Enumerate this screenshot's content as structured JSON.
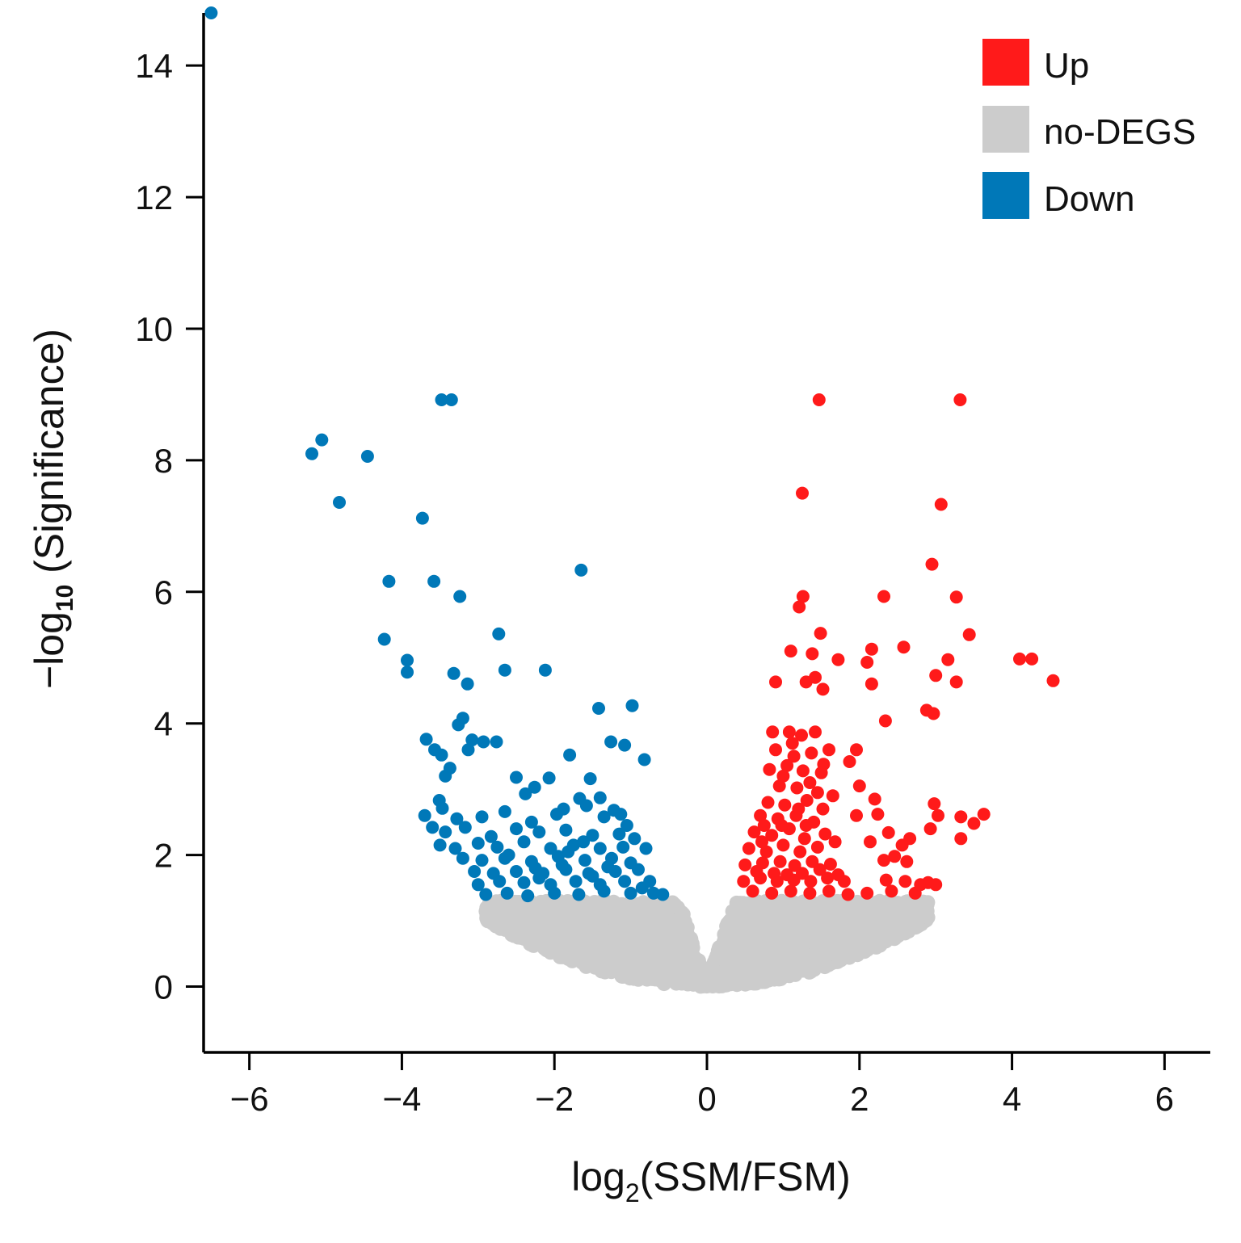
{
  "chart_data": {
    "type": "scatter",
    "title": "",
    "xlabel": {
      "prefix": "log",
      "sub": "2",
      "suffix": "(SSM/FSM)"
    },
    "ylabel": {
      "prefix": "−log",
      "sub": "10",
      "suffix": " (Significance)"
    },
    "xlim": [
      -6.6,
      6.6
    ],
    "ylim": [
      -1,
      14.8
    ],
    "xticks": [
      {
        "value": -6,
        "label": "−6"
      },
      {
        "value": -4,
        "label": "−4"
      },
      {
        "value": -2,
        "label": "−2"
      },
      {
        "value": 0,
        "label": "0"
      },
      {
        "value": 2,
        "label": "2"
      },
      {
        "value": 4,
        "label": "4"
      },
      {
        "value": 6,
        "label": "6"
      }
    ],
    "yticks": [
      {
        "value": 0,
        "label": "0"
      },
      {
        "value": 2,
        "label": "2"
      },
      {
        "value": 4,
        "label": "4"
      },
      {
        "value": 6,
        "label": "6"
      },
      {
        "value": 8,
        "label": "8"
      },
      {
        "value": 10,
        "label": "10"
      },
      {
        "value": 12,
        "label": "12"
      },
      {
        "value": 14,
        "label": "14"
      }
    ],
    "significance_threshold": 1.3,
    "legend": {
      "position": "top-right"
    },
    "series": [
      {
        "name": "Up",
        "color": "#ff1a1a",
        "points": [
          [
            1.47,
            8.92
          ],
          [
            3.32,
            8.92
          ],
          [
            1.25,
            7.5
          ],
          [
            3.07,
            7.33
          ],
          [
            2.95,
            6.42
          ],
          [
            1.26,
            5.93
          ],
          [
            2.32,
            5.93
          ],
          [
            3.27,
            5.92
          ],
          [
            1.21,
            5.77
          ],
          [
            1.49,
            5.37
          ],
          [
            3.44,
            5.35
          ],
          [
            1.1,
            5.1
          ],
          [
            1.38,
            5.06
          ],
          [
            2.16,
            5.13
          ],
          [
            2.58,
            5.16
          ],
          [
            1.72,
            4.97
          ],
          [
            2.1,
            4.93
          ],
          [
            3.16,
            4.97
          ],
          [
            4.1,
            4.98
          ],
          [
            4.26,
            4.98
          ],
          [
            0.9,
            4.63
          ],
          [
            1.3,
            4.63
          ],
          [
            1.42,
            4.7
          ],
          [
            1.52,
            4.52
          ],
          [
            2.16,
            4.6
          ],
          [
            3.0,
            4.73
          ],
          [
            3.27,
            4.63
          ],
          [
            4.54,
            4.65
          ],
          [
            2.88,
            4.2
          ],
          [
            2.97,
            4.15
          ],
          [
            2.34,
            4.04
          ],
          [
            0.86,
            3.87
          ],
          [
            1.08,
            3.87
          ],
          [
            1.24,
            3.82
          ],
          [
            1.42,
            3.87
          ],
          [
            0.9,
            3.6
          ],
          [
            1.14,
            3.5
          ],
          [
            1.37,
            3.55
          ],
          [
            1.6,
            3.6
          ],
          [
            1.96,
            3.6
          ],
          [
            0.82,
            3.3
          ],
          [
            1.05,
            3.36
          ],
          [
            1.26,
            3.28
          ],
          [
            1.53,
            3.38
          ],
          [
            1.87,
            3.42
          ],
          [
            0.95,
            3.05
          ],
          [
            1.18,
            3.02
          ],
          [
            1.45,
            2.95
          ],
          [
            2.0,
            3.05
          ],
          [
            0.8,
            2.8
          ],
          [
            1.02,
            2.76
          ],
          [
            1.31,
            2.83
          ],
          [
            1.65,
            2.9
          ],
          [
            2.2,
            2.85
          ],
          [
            2.98,
            2.78
          ],
          [
            0.7,
            2.6
          ],
          [
            0.93,
            2.55
          ],
          [
            1.17,
            2.6
          ],
          [
            1.4,
            2.5
          ],
          [
            1.96,
            2.6
          ],
          [
            2.24,
            2.62
          ],
          [
            3.03,
            2.6
          ],
          [
            3.33,
            2.58
          ],
          [
            3.63,
            2.62
          ],
          [
            3.5,
            2.48
          ],
          [
            0.62,
            2.35
          ],
          [
            0.85,
            2.3
          ],
          [
            1.08,
            2.4
          ],
          [
            1.28,
            2.25
          ],
          [
            1.55,
            2.32
          ],
          [
            2.38,
            2.34
          ],
          [
            2.93,
            2.4
          ],
          [
            3.33,
            2.25
          ],
          [
            0.55,
            2.1
          ],
          [
            0.78,
            2.05
          ],
          [
            1.0,
            2.15
          ],
          [
            1.22,
            2.05
          ],
          [
            1.45,
            2.12
          ],
          [
            2.14,
            2.2
          ],
          [
            2.56,
            2.15
          ],
          [
            2.66,
            2.25
          ],
          [
            0.5,
            1.85
          ],
          [
            0.73,
            1.88
          ],
          [
            0.96,
            1.9
          ],
          [
            1.15,
            1.84
          ],
          [
            1.38,
            1.9
          ],
          [
            1.62,
            1.86
          ],
          [
            2.32,
            1.92
          ],
          [
            2.46,
            1.98
          ],
          [
            2.62,
            1.9
          ],
          [
            0.48,
            1.6
          ],
          [
            0.7,
            1.65
          ],
          [
            0.92,
            1.6
          ],
          [
            1.14,
            1.62
          ],
          [
            1.36,
            1.6
          ],
          [
            1.58,
            1.65
          ],
          [
            1.8,
            1.6
          ],
          [
            2.35,
            1.62
          ],
          [
            2.6,
            1.6
          ],
          [
            2.9,
            1.58
          ],
          [
            3.0,
            1.55
          ],
          [
            0.6,
            1.45
          ],
          [
            0.85,
            1.42
          ],
          [
            1.1,
            1.45
          ],
          [
            1.35,
            1.42
          ],
          [
            1.6,
            1.45
          ],
          [
            1.85,
            1.4
          ],
          [
            2.1,
            1.42
          ],
          [
            2.42,
            1.45
          ],
          [
            2.73,
            1.42
          ],
          [
            2.8,
            1.55
          ],
          [
            0.65,
            1.75
          ],
          [
            0.88,
            1.72
          ],
          [
            1.05,
            1.7
          ],
          [
            1.25,
            1.72
          ],
          [
            1.48,
            1.78
          ],
          [
            1.72,
            1.7
          ],
          [
            0.72,
            2.2
          ],
          [
            0.98,
            2.45
          ],
          [
            1.2,
            2.7
          ],
          [
            1.35,
            3.1
          ],
          [
            1.5,
            3.25
          ],
          [
            1.12,
            3.7
          ],
          [
            1.0,
            3.2
          ],
          [
            0.75,
            2.45
          ],
          [
            1.3,
            2.45
          ],
          [
            1.52,
            2.7
          ],
          [
            1.68,
            2.2
          ]
        ]
      },
      {
        "name": "no-DEGS",
        "color": "#cccccc",
        "points": []
      },
      {
        "name": "Down",
        "color": "#0078b8",
        "points": [
          [
            -6.5,
            14.8
          ],
          [
            -3.48,
            8.92
          ],
          [
            -3.35,
            8.92
          ],
          [
            -5.05,
            8.31
          ],
          [
            -5.18,
            8.1
          ],
          [
            -4.45,
            8.06
          ],
          [
            -4.82,
            7.36
          ],
          [
            -3.73,
            7.12
          ],
          [
            -1.65,
            6.33
          ],
          [
            -4.17,
            6.16
          ],
          [
            -3.58,
            6.16
          ],
          [
            -3.24,
            5.93
          ],
          [
            -2.73,
            5.36
          ],
          [
            -4.23,
            5.28
          ],
          [
            -3.93,
            4.96
          ],
          [
            -3.93,
            4.78
          ],
          [
            -3.32,
            4.76
          ],
          [
            -2.65,
            4.81
          ],
          [
            -2.12,
            4.81
          ],
          [
            -3.14,
            4.6
          ],
          [
            -0.98,
            4.27
          ],
          [
            -1.42,
            4.23
          ],
          [
            -3.2,
            4.08
          ],
          [
            -3.26,
            3.98
          ],
          [
            -3.68,
            3.76
          ],
          [
            -3.08,
            3.75
          ],
          [
            -2.93,
            3.72
          ],
          [
            -2.76,
            3.72
          ],
          [
            -1.26,
            3.72
          ],
          [
            -1.08,
            3.67
          ],
          [
            -3.57,
            3.6
          ],
          [
            -3.48,
            3.52
          ],
          [
            -3.13,
            3.6
          ],
          [
            -1.8,
            3.52
          ],
          [
            -0.82,
            3.45
          ],
          [
            -3.37,
            3.32
          ],
          [
            -3.43,
            3.2
          ],
          [
            -2.5,
            3.18
          ],
          [
            -2.07,
            3.17
          ],
          [
            -1.53,
            3.16
          ],
          [
            -2.26,
            3.03
          ],
          [
            -2.38,
            2.93
          ],
          [
            -1.4,
            2.87
          ],
          [
            -3.51,
            2.83
          ],
          [
            -3.47,
            2.71
          ],
          [
            -1.67,
            2.86
          ],
          [
            -1.58,
            2.75
          ],
          [
            -1.88,
            2.7
          ],
          [
            -1.22,
            2.68
          ],
          [
            -1.13,
            2.62
          ],
          [
            -3.7,
            2.6
          ],
          [
            -3.28,
            2.55
          ],
          [
            -2.95,
            2.58
          ],
          [
            -2.65,
            2.66
          ],
          [
            -2.3,
            2.5
          ],
          [
            -1.97,
            2.62
          ],
          [
            -1.35,
            2.58
          ],
          [
            -1.05,
            2.45
          ],
          [
            -3.6,
            2.42
          ],
          [
            -3.43,
            2.35
          ],
          [
            -3.17,
            2.42
          ],
          [
            -2.83,
            2.28
          ],
          [
            -2.5,
            2.4
          ],
          [
            -2.2,
            2.35
          ],
          [
            -1.85,
            2.38
          ],
          [
            -1.5,
            2.3
          ],
          [
            -1.15,
            2.32
          ],
          [
            -0.95,
            2.25
          ],
          [
            -3.5,
            2.15
          ],
          [
            -3.3,
            2.1
          ],
          [
            -3.0,
            2.18
          ],
          [
            -2.75,
            2.12
          ],
          [
            -2.4,
            2.2
          ],
          [
            -2.05,
            2.1
          ],
          [
            -1.75,
            2.15
          ],
          [
            -1.4,
            2.1
          ],
          [
            -1.1,
            2.12
          ],
          [
            -0.8,
            2.1
          ],
          [
            -3.2,
            1.95
          ],
          [
            -2.95,
            1.92
          ],
          [
            -2.65,
            1.95
          ],
          [
            -2.3,
            1.9
          ],
          [
            -1.95,
            1.98
          ],
          [
            -1.6,
            1.92
          ],
          [
            -1.25,
            1.95
          ],
          [
            -1.0,
            1.88
          ],
          [
            -3.05,
            1.75
          ],
          [
            -2.8,
            1.72
          ],
          [
            -2.5,
            1.75
          ],
          [
            -2.15,
            1.72
          ],
          [
            -1.85,
            1.78
          ],
          [
            -1.55,
            1.72
          ],
          [
            -1.2,
            1.75
          ],
          [
            -0.9,
            1.78
          ],
          [
            -0.75,
            1.6
          ],
          [
            -3.0,
            1.55
          ],
          [
            -2.72,
            1.6
          ],
          [
            -2.4,
            1.58
          ],
          [
            -2.05,
            1.55
          ],
          [
            -1.72,
            1.6
          ],
          [
            -1.4,
            1.55
          ],
          [
            -1.08,
            1.6
          ],
          [
            -2.9,
            1.4
          ],
          [
            -2.62,
            1.42
          ],
          [
            -2.35,
            1.38
          ],
          [
            -2.0,
            1.42
          ],
          [
            -1.68,
            1.4
          ],
          [
            -1.35,
            1.45
          ],
          [
            -1.0,
            1.42
          ],
          [
            -0.7,
            1.42
          ],
          [
            -0.58,
            1.4
          ],
          [
            -2.2,
            1.65
          ],
          [
            -1.9,
            1.85
          ],
          [
            -1.5,
            1.68
          ],
          [
            -1.3,
            1.82
          ],
          [
            -2.6,
            2.0
          ],
          [
            -2.25,
            1.8
          ],
          [
            -1.82,
            2.05
          ],
          [
            -1.62,
            2.2
          ],
          [
            -0.85,
            1.5
          ]
        ]
      }
    ]
  }
}
